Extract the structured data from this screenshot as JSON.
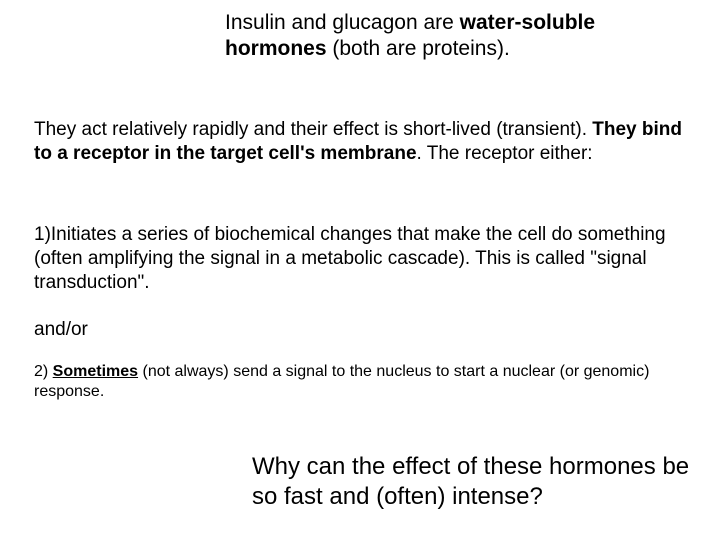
{
  "title": {
    "lead": "Insulin and glucagon are ",
    "bold": "water-soluble hormones",
    "tail": " (both are proteins)."
  },
  "para1": {
    "lead": "They act relatively rapidly and their effect is short-lived (transient). ",
    "bold": "They bind to a receptor in the target cell's membrane",
    "tail": ". The receptor either:"
  },
  "para2": "1)Initiates a series of biochemical changes that make the cell do something (often amplifying the signal in a metabolic cascade). This is called \"signal transduction\".",
  "andor": "and/or",
  "para3": {
    "lead": "2) ",
    "bold_u": "Sometimes",
    "tail": " (not always) send a signal to the nucleus to start a nuclear (or genomic) response."
  },
  "closing": "Why can the effect of these hormones be so fast and (often) intense?"
}
